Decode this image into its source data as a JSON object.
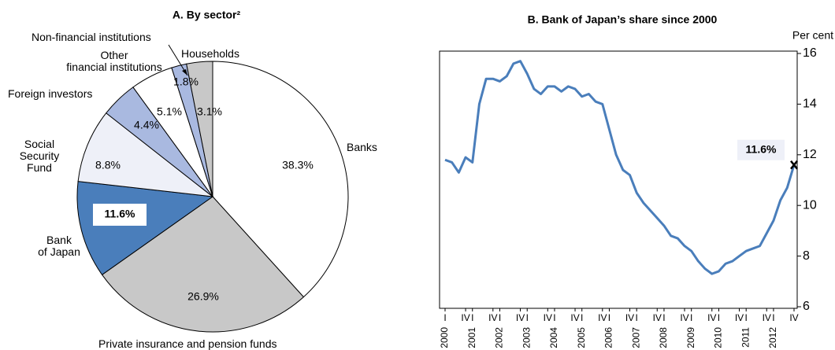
{
  "chart_data": [
    {
      "type": "pie",
      "title": "A. By sector²",
      "categories": [
        "Banks",
        "Private insurance and pension funds",
        "Bank\nof Japan",
        "Social\nSecurity\nFund",
        "Foreign investors",
        "Other\nfinancial institutions",
        "Non-financial institutions",
        "Households"
      ],
      "values": [
        38.3,
        26.9,
        11.6,
        8.8,
        4.4,
        5.1,
        1.8,
        3.1
      ],
      "value_labels": [
        "38.3%",
        "26.9%",
        "11.6%",
        "8.8%",
        "4.4%",
        "5.1%",
        "1.8%",
        "3.1%"
      ],
      "colors": [
        "#ffffff",
        "#c8c8c8",
        "#4a7ebb",
        "#eef0f8",
        "#a9b9e0",
        "#ffffff",
        "#a9b9e0",
        "#c8c8c8"
      ]
    },
    {
      "type": "line",
      "title": "B. Bank of Japan’s share since 2000",
      "y_axis_label": "Per cent",
      "categories": [
        "I",
        null,
        null,
        "IV",
        "I",
        null,
        null,
        "IV",
        "I",
        null,
        null,
        "IV",
        "I",
        null,
        null,
        "IV",
        "I",
        null,
        null,
        "IV",
        "I",
        null,
        null,
        "IV",
        "I",
        null,
        null,
        "IV",
        "I",
        null,
        null,
        "IV",
        "I",
        null,
        null,
        "IV",
        "I",
        null,
        null,
        "IV",
        "I",
        null,
        null,
        "IV",
        "I",
        null,
        null,
        "IV",
        "I",
        null,
        null,
        "IV"
      ],
      "years": [
        "2000",
        "2001",
        "2002",
        "2003",
        "2004",
        "2005",
        "2006",
        "2007",
        "2008",
        "2009",
        "2010",
        "2011",
        "2012"
      ],
      "values": [
        11.8,
        11.7,
        11.3,
        11.9,
        11.7,
        14.0,
        15.0,
        15.0,
        14.9,
        15.1,
        15.6,
        15.7,
        15.2,
        14.6,
        14.4,
        14.7,
        14.7,
        14.5,
        14.7,
        14.6,
        14.3,
        14.4,
        14.1,
        14.0,
        13.0,
        12.0,
        11.4,
        11.2,
        10.5,
        10.1,
        9.8,
        9.5,
        9.2,
        8.8,
        8.7,
        8.4,
        8.2,
        7.8,
        7.5,
        7.3,
        7.4,
        7.7,
        7.8,
        8.0,
        8.2,
        8.3,
        8.4,
        8.9,
        9.4,
        10.2,
        10.7,
        11.6
      ],
      "color": "#4a7ebb",
      "ylim": [
        6,
        16
      ],
      "yticks": [
        6,
        8,
        10,
        12,
        14,
        16
      ],
      "y_axis_side": "right",
      "grid": false,
      "annotation": "11.6%"
    }
  ]
}
